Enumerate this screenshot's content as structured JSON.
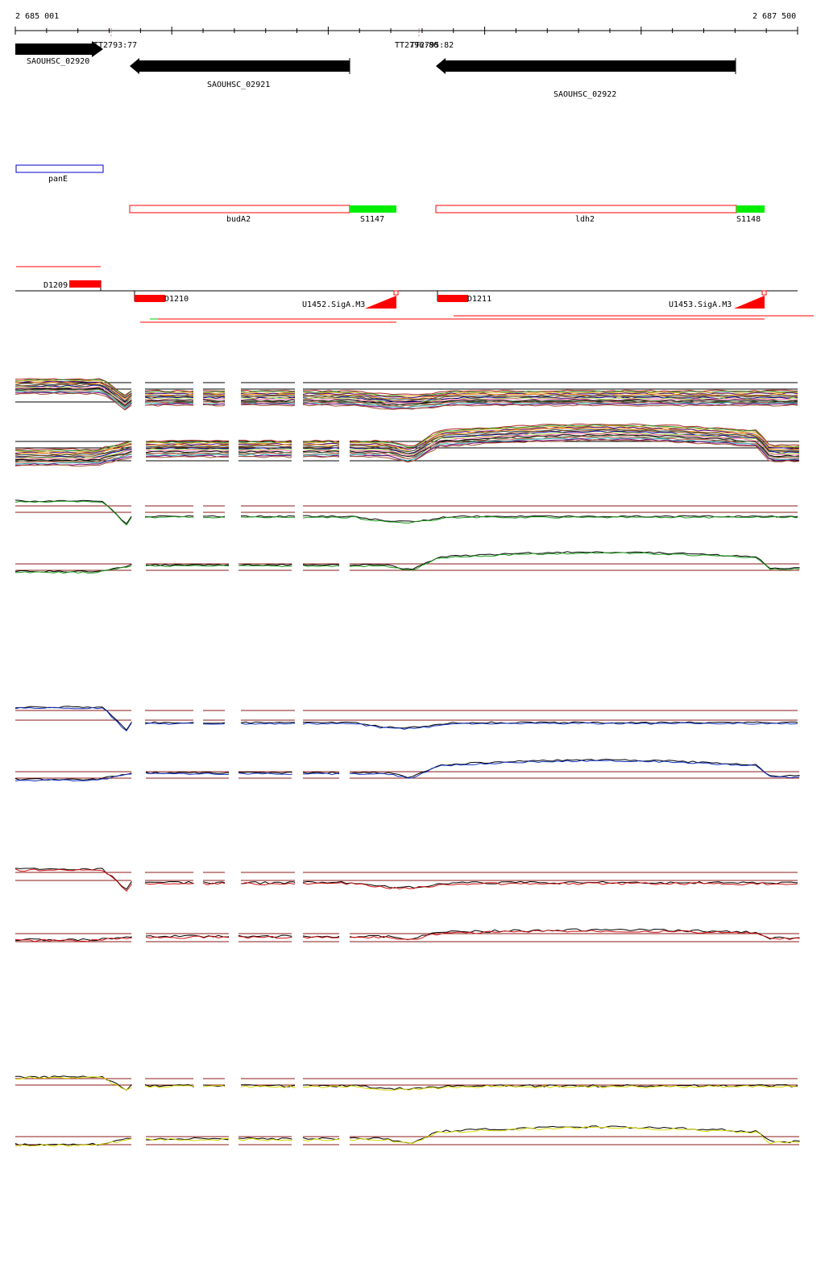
{
  "ruler": {
    "start_label": "2 685 001",
    "end_label": "2 687 500"
  },
  "terminators": [
    {
      "label": "TT2793:77"
    },
    {
      "label": "TT2796:80"
    },
    {
      "label": "TT2795:82"
    }
  ],
  "genes": [
    {
      "name": "SAOUHSC_02920",
      "strand": "+"
    },
    {
      "name": "SAOUHSC_02921",
      "strand": "-"
    },
    {
      "name": "SAOUHSC_02922",
      "strand": "-"
    }
  ],
  "operon_features": [
    {
      "label": "panE",
      "color": "#0000cc"
    },
    {
      "label": "budA2",
      "color": "#ff0000"
    },
    {
      "label": "S1147",
      "color": "#00ee00"
    },
    {
      "label": "ldh2",
      "color": "#ff0000"
    },
    {
      "label": "S1148",
      "color": "#00ee00"
    }
  ],
  "transcript_features": [
    {
      "label": "D1209"
    },
    {
      "label": "D1210"
    },
    {
      "label": "D1211"
    },
    {
      "label": "U1452.SigA.M3"
    },
    {
      "label": "U1453.SigA.M3"
    }
  ],
  "colors": {
    "gene_arrow": "#000000",
    "operon_red": "#ff0000",
    "operon_green": "#00ee00",
    "operon_blue": "#0000cc",
    "reference_line": "#8b1a1a",
    "track_green": "#1a9a1a",
    "track_blue": "#1030c0",
    "track_red": "#d01010",
    "track_yellow": "#d8d800"
  }
}
